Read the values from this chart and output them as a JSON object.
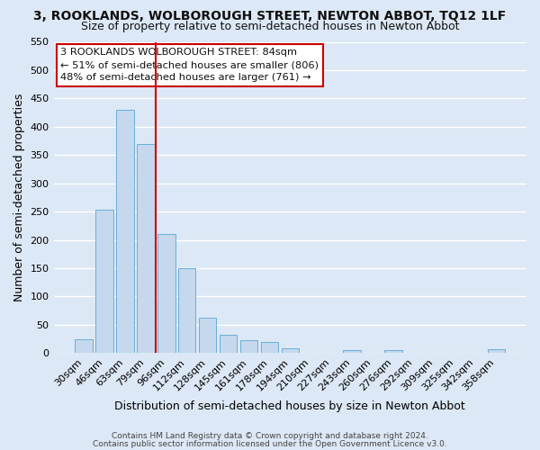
{
  "title": "3, ROOKLANDS, WOLBOROUGH STREET, NEWTON ABBOT, TQ12 1LF",
  "subtitle": "Size of property relative to semi-detached houses in Newton Abbot",
  "xlabel": "Distribution of semi-detached houses by size in Newton Abbot",
  "ylabel": "Number of semi-detached properties",
  "bin_labels": [
    "30sqm",
    "46sqm",
    "63sqm",
    "79sqm",
    "96sqm",
    "112sqm",
    "128sqm",
    "145sqm",
    "161sqm",
    "178sqm",
    "194sqm",
    "210sqm",
    "227sqm",
    "243sqm",
    "260sqm",
    "276sqm",
    "292sqm",
    "309sqm",
    "325sqm",
    "342sqm",
    "358sqm"
  ],
  "bar_heights": [
    25,
    253,
    430,
    370,
    210,
    150,
    63,
    33,
    22,
    20,
    8,
    0,
    0,
    5,
    0,
    5,
    0,
    0,
    0,
    0,
    7
  ],
  "bar_color": "#c5d8ed",
  "bar_edge_color": "#6aaed6",
  "ylim": [
    0,
    550
  ],
  "yticks": [
    0,
    50,
    100,
    150,
    200,
    250,
    300,
    350,
    400,
    450,
    500,
    550
  ],
  "annotation_title": "3 ROOKLANDS WOLBOROUGH STREET: 84sqm",
  "annotation_line1": "← 51% of semi-detached houses are smaller (806)",
  "annotation_line2": "48% of semi-detached houses are larger (761) →",
  "annotation_box_color": "#ffffff",
  "annotation_box_edge": "#cc0000",
  "vline_color": "#cc0000",
  "vline_pos": 3.5,
  "footer1": "Contains HM Land Registry data © Crown copyright and database right 2024.",
  "footer2": "Contains public sector information licensed under the Open Government Licence v3.0.",
  "bg_color": "#dce8f5",
  "plot_bg_color": "#dce8f5",
  "grid_color": "#ffffff",
  "title_fontsize": 10,
  "subtitle_fontsize": 9,
  "axis_label_fontsize": 9,
  "tick_fontsize": 8
}
